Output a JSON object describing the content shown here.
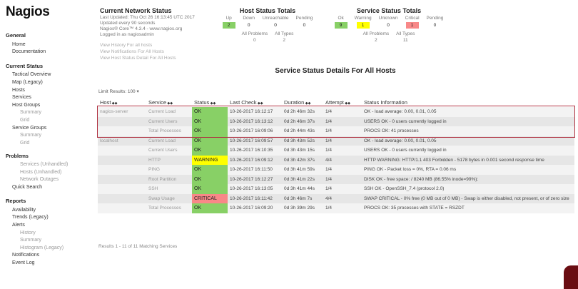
{
  "logo": "Nagios",
  "sidebar": [
    {
      "title": "General",
      "items": [
        {
          "label": "Home"
        },
        {
          "label": "Documentation"
        }
      ]
    },
    {
      "title": "Current Status",
      "items": [
        {
          "label": "Tactical Overview"
        },
        {
          "label": "Map (Legacy)"
        },
        {
          "label": "Hosts"
        },
        {
          "label": "Services"
        },
        {
          "label": "Host Groups",
          "sub": [
            "Summary",
            "Grid"
          ]
        },
        {
          "label": "Service Groups",
          "sub": [
            "Summary",
            "Grid"
          ]
        },
        {
          "label": "Problems",
          "bold": true,
          "sub": [
            "Services (Unhandled)",
            "Hosts (Unhandled)",
            "Network Outages"
          ]
        },
        {
          "label": "Quick Search"
        }
      ]
    },
    {
      "title": "Reports",
      "items": [
        {
          "label": "Availability"
        },
        {
          "label": "Trends (Legacy)"
        },
        {
          "label": "Alerts",
          "sub": [
            "History",
            "Summary",
            "Histogram (Legacy)"
          ]
        },
        {
          "label": "Notifications"
        },
        {
          "label": "Event Log"
        }
      ]
    }
  ],
  "header": {
    "title": "Current Network Status",
    "lines": [
      "Last Updated: Thu Oct 26 16:13:45 UTC 2017",
      "Updated every 90 seconds",
      "Nagios® Core™ 4.3.4 - www.nagios.org",
      "Logged in as nagiosadmin"
    ],
    "links": [
      "View History For all hosts",
      "View Notifications For All Hosts",
      "View Host Status Detail For All Hosts"
    ]
  },
  "host_totals": {
    "title": "Host Status Totals",
    "labels": [
      "Up",
      "Down",
      "Unreachable",
      "Pending"
    ],
    "counts": [
      2,
      0,
      0,
      0
    ],
    "count_colors": [
      "#88d066",
      null,
      null,
      null
    ],
    "summary_labels": [
      "All Problems",
      "All Types"
    ],
    "summary_counts": [
      0,
      2
    ]
  },
  "service_totals": {
    "title": "Service Status Totals",
    "labels": [
      "Ok",
      "Warning",
      "Unknown",
      "Critical",
      "Pending"
    ],
    "counts": [
      9,
      1,
      0,
      1,
      0
    ],
    "count_colors": [
      "#88d066",
      "#ffff00",
      null,
      "#f88888",
      null
    ],
    "summary_labels": [
      "All Problems",
      "All Types"
    ],
    "summary_counts": [
      2,
      11
    ]
  },
  "main_title": "Service Status Details For All Hosts",
  "limit": {
    "label": "Limit Results:",
    "value": "100"
  },
  "table": {
    "columns": [
      "Host",
      "Service",
      "Status",
      "Last Check",
      "Duration",
      "Attempt",
      "Status Information"
    ],
    "hosts": [
      {
        "name": "nagios-server",
        "services": [
          {
            "service": "Current Load",
            "status": "OK",
            "color": "#88d066",
            "last_check": "10-26-2017 16:12:17",
            "duration": "0d 2h 46m 32s",
            "attempt": "1/4",
            "info": "OK - load average: 0.00, 0.01, 0.05"
          },
          {
            "service": "Current Users",
            "status": "OK",
            "color": "#88d066",
            "last_check": "10-26-2017 16:13:12",
            "duration": "0d 2h 46m 37s",
            "attempt": "1/4",
            "info": "USERS OK - 0 users currently logged in"
          },
          {
            "service": "Total Processes",
            "status": "OK",
            "color": "#88d066",
            "last_check": "10-26-2017 16:09:06",
            "duration": "0d 2h 44m 43s",
            "attempt": "1/4",
            "info": "PROCS OK: 41 processes"
          }
        ]
      },
      {
        "name": "localhost",
        "services": [
          {
            "service": "Current Load",
            "status": "OK",
            "color": "#88d066",
            "last_check": "10-26-2017 16:09:57",
            "duration": "0d 3h 43m 52s",
            "attempt": "1/4",
            "info": "OK - load average: 0.00, 0.01, 0.05"
          },
          {
            "service": "Current Users",
            "status": "OK",
            "color": "#88d066",
            "last_check": "10-26-2017 16:10:35",
            "duration": "0d 3h 43m 15s",
            "attempt": "1/4",
            "info": "USERS OK - 0 users currently logged in"
          },
          {
            "service": "HTTP",
            "status": "WARNING",
            "color": "#ffff00",
            "last_check": "10-26-2017 16:09:12",
            "duration": "0d 3h 42m 37s",
            "attempt": "4/4",
            "info": "HTTP WARNING: HTTP/1.1 403 Forbidden - 5178 bytes in 0.001 second response time"
          },
          {
            "service": "PING",
            "status": "OK",
            "color": "#88d066",
            "last_check": "10-26-2017 16:11:50",
            "duration": "0d 3h 41m 59s",
            "attempt": "1/4",
            "info": "PING OK - Packet loss = 0%, RTA = 0.06 ms"
          },
          {
            "service": "Root Partition",
            "status": "OK",
            "color": "#88d066",
            "last_check": "10-26-2017 16:12:27",
            "duration": "0d 3h 41m 22s",
            "attempt": "1/4",
            "info": "DISK OK - free space: / 8240 MB (86.55% inode=99%):"
          },
          {
            "service": "SSH",
            "status": "OK",
            "color": "#88d066",
            "last_check": "10-26-2017 16:13:05",
            "duration": "0d 3h 41m 44s",
            "attempt": "1/4",
            "info": "SSH OK - OpenSSH_7.4 (protocol 2.0)"
          },
          {
            "service": "Swap Usage",
            "status": "CRITICAL",
            "color": "#f88888",
            "last_check": "10-26-2017 16:11:42",
            "duration": "0d 3h 46m 7s",
            "attempt": "4/4",
            "info": "SWAP CRITICAL - 0% free (0 MB out of 0 MB) - Swap is either disabled, not present, or of zero size"
          },
          {
            "service": "Total Processes",
            "status": "OK",
            "color": "#88d066",
            "last_check": "10-26-2017 16:09:20",
            "duration": "0d 3h 39m 29s",
            "attempt": "1/4",
            "info": "PROCS OK: 35 processes with STATE = RSZDT"
          }
        ]
      }
    ]
  },
  "footer": "Results 1 - 11 of 11 Matching Services"
}
